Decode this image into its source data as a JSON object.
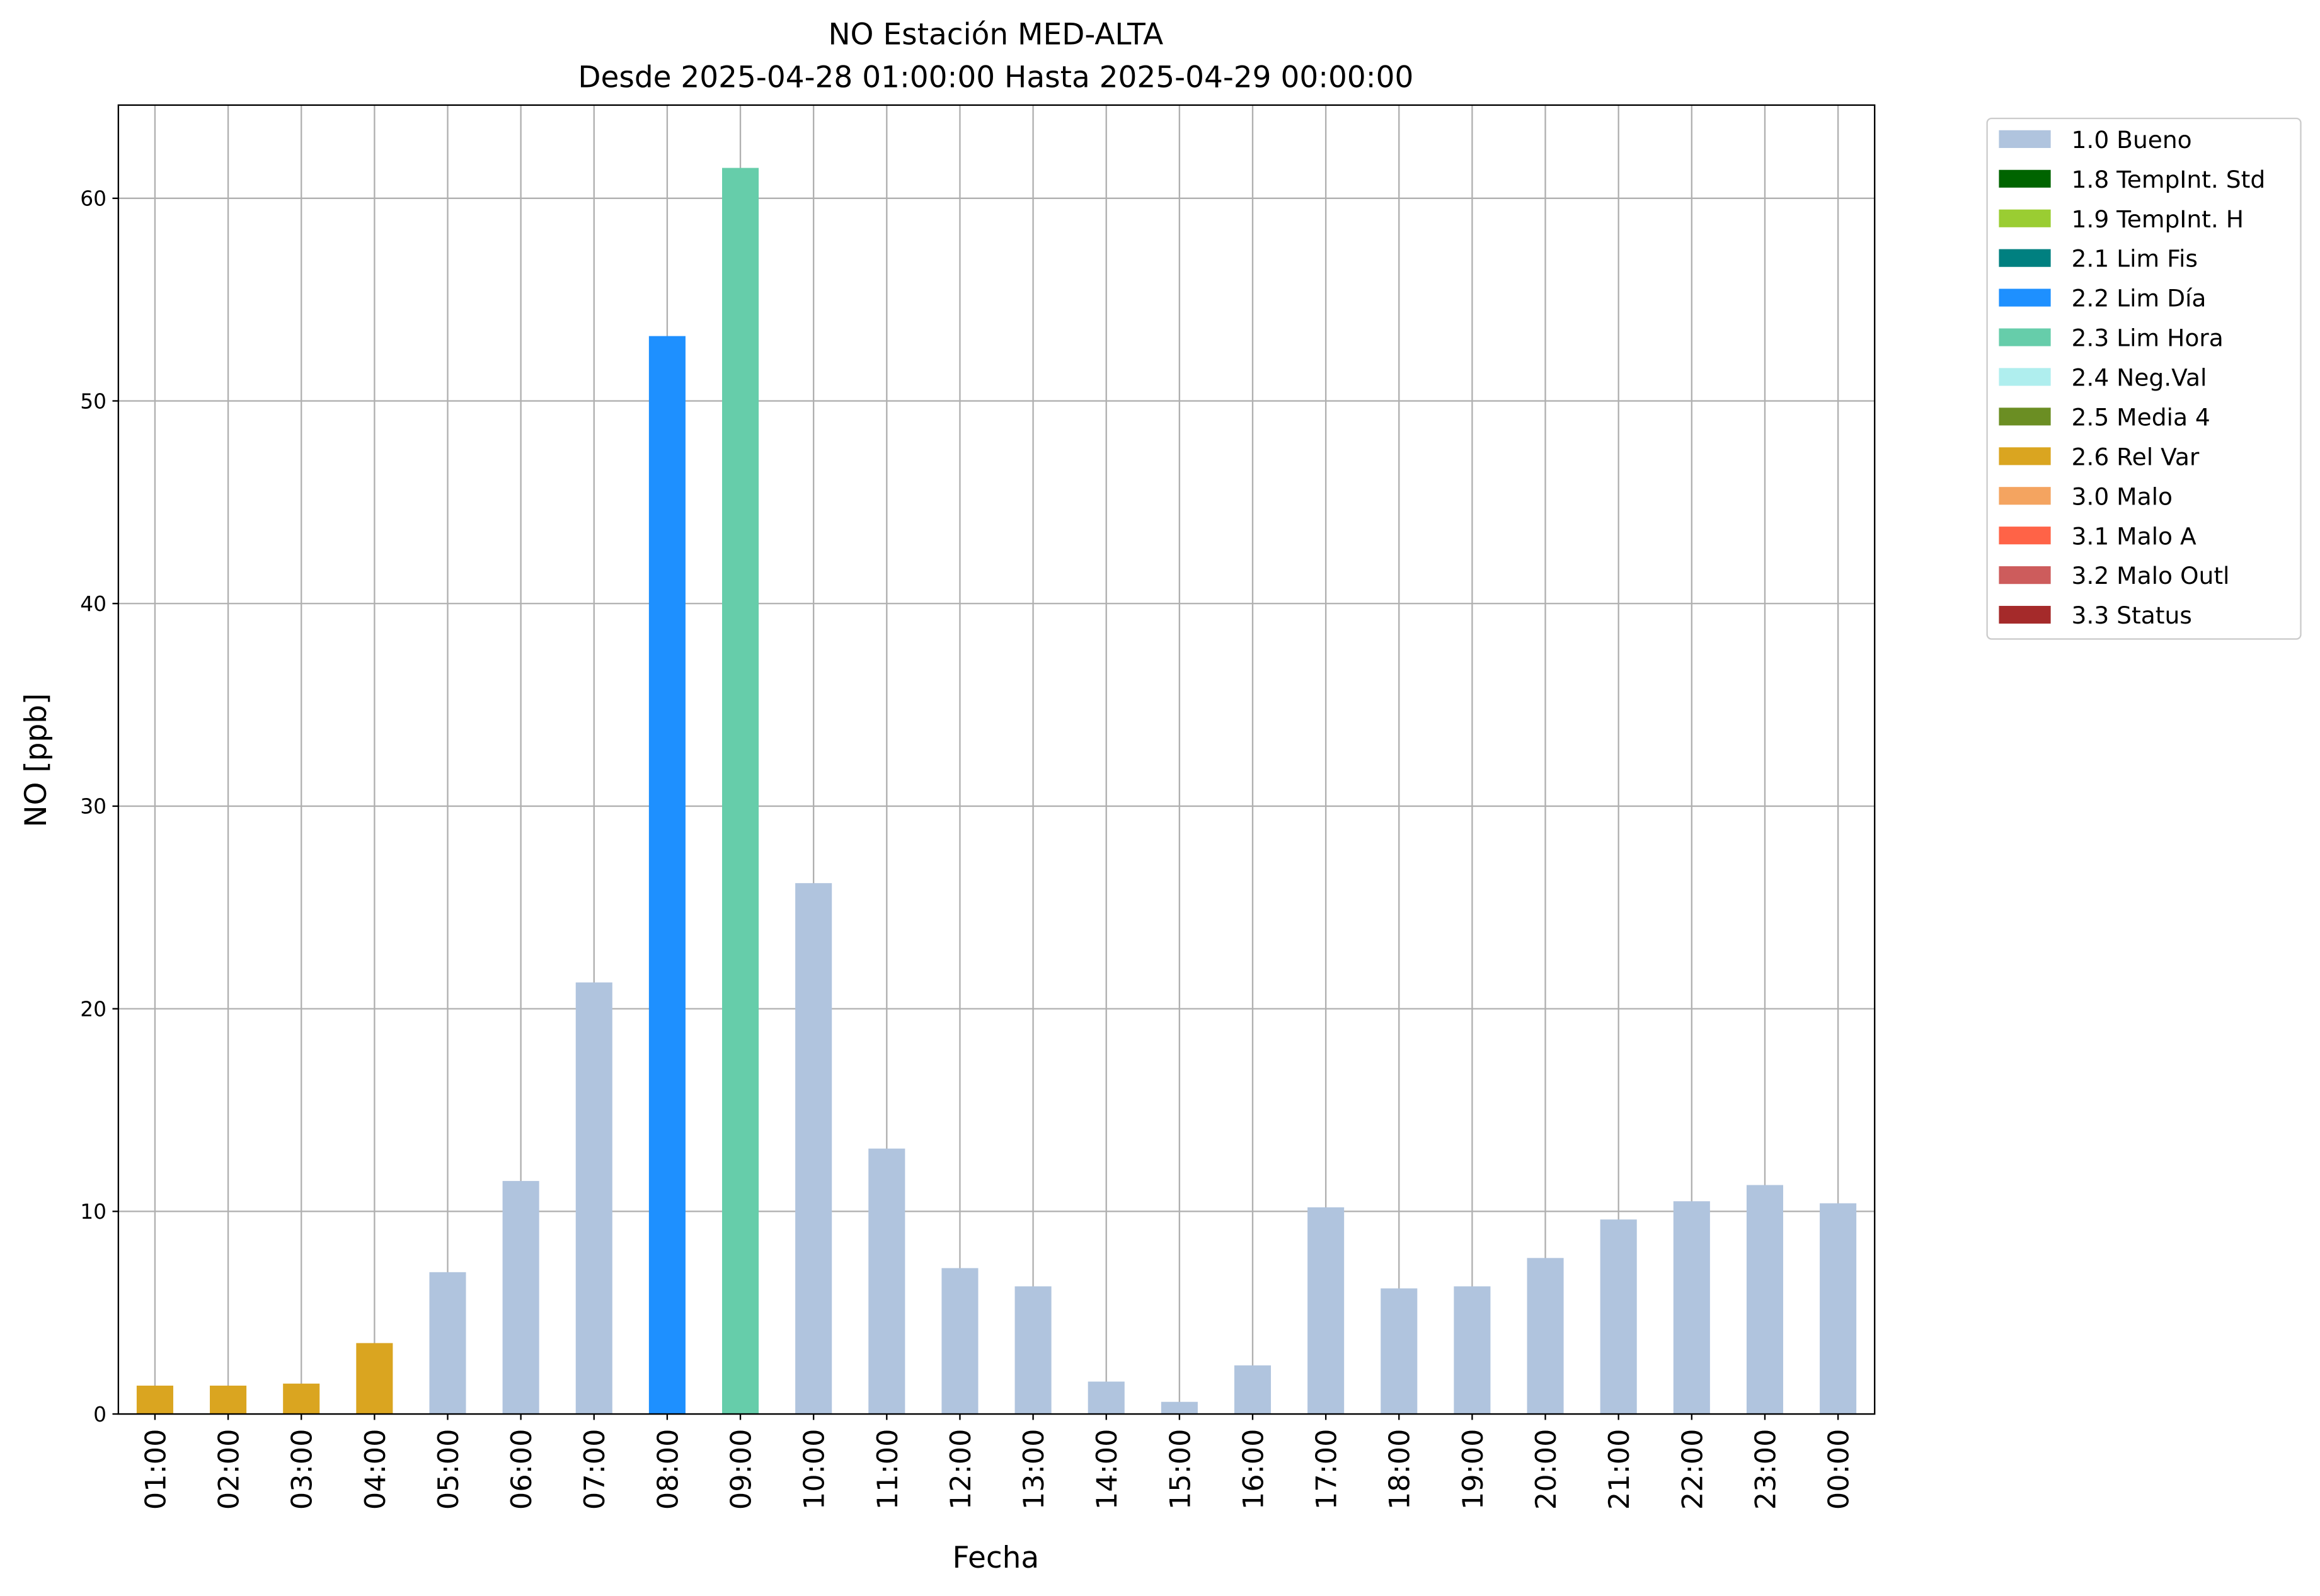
{
  "chart_data": {
    "type": "bar",
    "title": "NO Estación MED-ALTA",
    "subtitle": "Desde 2025-04-28 01:00:00 Hasta 2025-04-29 00:00:00",
    "x_label": "Fecha",
    "y_label": "NO [ppb]",
    "categories": [
      "01:00",
      "02:00",
      "03:00",
      "04:00",
      "05:00",
      "06:00",
      "07:00",
      "08:00",
      "09:00",
      "10:00",
      "11:00",
      "12:00",
      "13:00",
      "14:00",
      "15:00",
      "16:00",
      "17:00",
      "18:00",
      "19:00",
      "20:00",
      "21:00",
      "22:00",
      "23:00",
      "00:00"
    ],
    "series": [
      {
        "name": "1.0 Bueno",
        "color": "#b0c4de",
        "values": [
          null,
          null,
          null,
          null,
          7.0,
          11.5,
          21.3,
          null,
          null,
          26.2,
          13.1,
          7.2,
          6.3,
          1.6,
          0.6,
          2.4,
          10.2,
          6.2,
          6.3,
          7.7,
          9.6,
          10.5,
          11.3,
          10.4
        ]
      },
      {
        "name": "1.8 TempInt. Std",
        "color": "#006400",
        "values": [
          null,
          null,
          null,
          null,
          null,
          null,
          null,
          null,
          null,
          null,
          null,
          null,
          null,
          null,
          null,
          null,
          null,
          null,
          null,
          null,
          null,
          null,
          null,
          null
        ]
      },
      {
        "name": "1.9 TempInt. H",
        "color": "#9acd32",
        "values": [
          null,
          null,
          null,
          null,
          null,
          null,
          null,
          null,
          null,
          null,
          null,
          null,
          null,
          null,
          null,
          null,
          null,
          null,
          null,
          null,
          null,
          null,
          null,
          null
        ]
      },
      {
        "name": "2.1 Lim Fis",
        "color": "#008080",
        "values": [
          null,
          null,
          null,
          null,
          null,
          null,
          null,
          null,
          null,
          null,
          null,
          null,
          null,
          null,
          null,
          null,
          null,
          null,
          null,
          null,
          null,
          null,
          null,
          null
        ]
      },
      {
        "name": "2.2 Lim Día",
        "color": "#1e90ff",
        "values": [
          null,
          null,
          null,
          null,
          null,
          null,
          null,
          53.2,
          null,
          null,
          null,
          null,
          null,
          null,
          null,
          null,
          null,
          null,
          null,
          null,
          null,
          null,
          null,
          null
        ]
      },
      {
        "name": "2.3 Lim Hora",
        "color": "#66cdaa",
        "values": [
          null,
          null,
          null,
          null,
          null,
          null,
          null,
          null,
          61.5,
          null,
          null,
          null,
          null,
          null,
          null,
          null,
          null,
          null,
          null,
          null,
          null,
          null,
          null,
          null
        ]
      },
      {
        "name": "2.4 Neg.Val",
        "color": "#afeeee",
        "values": [
          null,
          null,
          null,
          null,
          null,
          null,
          null,
          null,
          null,
          null,
          null,
          null,
          null,
          null,
          null,
          null,
          null,
          null,
          null,
          null,
          null,
          null,
          null,
          null
        ]
      },
      {
        "name": "2.5 Media 4",
        "color": "#6b8e23",
        "values": [
          null,
          null,
          null,
          null,
          null,
          null,
          null,
          null,
          null,
          null,
          null,
          null,
          null,
          null,
          null,
          null,
          null,
          null,
          null,
          null,
          null,
          null,
          null,
          null
        ]
      },
      {
        "name": "2.6 Rel Var",
        "color": "#daa520",
        "values": [
          1.4,
          1.4,
          1.5,
          3.5,
          null,
          null,
          null,
          null,
          null,
          null,
          null,
          null,
          null,
          null,
          null,
          null,
          null,
          null,
          null,
          null,
          null,
          null,
          null,
          null
        ]
      },
      {
        "name": "3.0 Malo",
        "color": "#f4a460",
        "values": [
          null,
          null,
          null,
          null,
          null,
          null,
          null,
          null,
          null,
          null,
          null,
          null,
          null,
          null,
          null,
          null,
          null,
          null,
          null,
          null,
          null,
          null,
          null,
          null
        ]
      },
      {
        "name": "3.1 Malo A",
        "color": "#ff6347",
        "values": [
          null,
          null,
          null,
          null,
          null,
          null,
          null,
          null,
          null,
          null,
          null,
          null,
          null,
          null,
          null,
          null,
          null,
          null,
          null,
          null,
          null,
          null,
          null,
          null
        ]
      },
      {
        "name": "3.2 Malo Outl",
        "color": "#cd5c5c",
        "values": [
          null,
          null,
          null,
          null,
          null,
          null,
          null,
          null,
          null,
          null,
          null,
          null,
          null,
          null,
          null,
          null,
          null,
          null,
          null,
          null,
          null,
          null,
          null,
          null
        ]
      },
      {
        "name": "3.3 Status",
        "color": "#a52a2a",
        "values": [
          null,
          null,
          null,
          null,
          null,
          null,
          null,
          null,
          null,
          null,
          null,
          null,
          null,
          null,
          null,
          null,
          null,
          null,
          null,
          null,
          null,
          null,
          null,
          null
        ]
      }
    ],
    "ylim": [
      0,
      64.6
    ],
    "yticks": [
      0,
      10,
      20,
      30,
      40,
      50,
      60
    ],
    "grid": true,
    "legend": "outside-upper-right"
  }
}
